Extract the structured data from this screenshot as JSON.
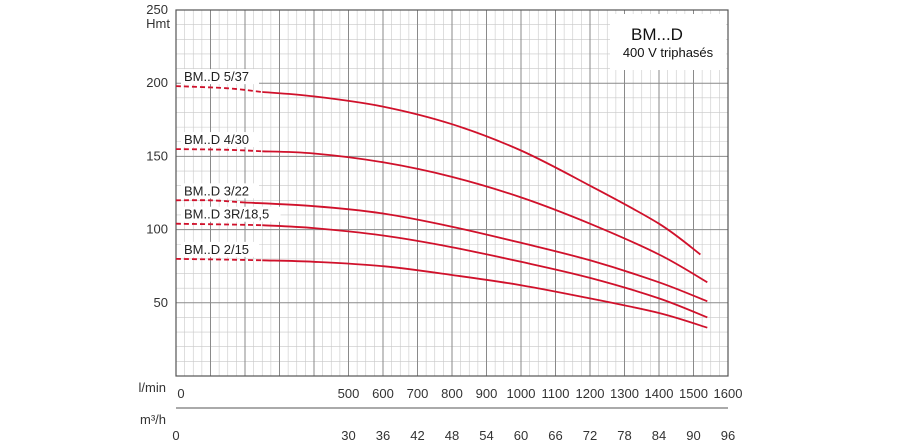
{
  "chart_data": {
    "type": "line",
    "title": "BM...D",
    "subtitle": "400 V triphasés",
    "ylabel": "Hmt",
    "xlabel": "l/min",
    "x2label": "m³/h",
    "ylim": [
      0,
      250
    ],
    "xlim": [
      0,
      1600
    ],
    "y_ticks": [
      "250",
      "200",
      "150",
      "100",
      "50"
    ],
    "y_tick_values": [
      250,
      200,
      150,
      100,
      50
    ],
    "x_ticks": [
      "0",
      "500",
      "600",
      "700",
      "800",
      "900",
      "1000",
      "1100",
      "1200",
      "1300",
      "1400",
      "1500",
      "1600"
    ],
    "x_tick_values": [
      0,
      500,
      600,
      700,
      800,
      900,
      1000,
      1100,
      1200,
      1300,
      1400,
      1500,
      1600
    ],
    "x2_ticks": [
      "0",
      "30",
      "36",
      "42",
      "48",
      "54",
      "60",
      "66",
      "72",
      "78",
      "84",
      "90",
      "96"
    ],
    "x2_tick_values": [
      0,
      500,
      600,
      700,
      800,
      900,
      1000,
      1100,
      1200,
      1300,
      1400,
      1500,
      1600
    ],
    "grid": true,
    "line_color": "#d0112b",
    "series": [
      {
        "name": "BM..D 5/37",
        "dashed": [
          [
            0,
            198
          ],
          [
            150,
            196.5
          ],
          [
            250,
            194
          ]
        ],
        "x": [
          250,
          400,
          600,
          800,
          1000,
          1200,
          1400,
          1520
        ],
        "y": [
          194,
          191,
          184,
          172,
          154,
          130,
          104,
          83
        ]
      },
      {
        "name": "BM..D 4/30",
        "dashed": [
          [
            0,
            155
          ],
          [
            150,
            154.5
          ],
          [
            250,
            153.5
          ]
        ],
        "x": [
          250,
          400,
          600,
          800,
          1000,
          1200,
          1400,
          1540
        ],
        "y": [
          153.5,
          152,
          146,
          136,
          122,
          104,
          83,
          64
        ]
      },
      {
        "name": "BM..D 3/22",
        "dashed": [
          [
            0,
            120
          ],
          [
            100,
            120
          ],
          [
            200,
            118.5
          ]
        ],
        "x": [
          200,
          400,
          600,
          800,
          1000,
          1200,
          1400,
          1540
        ],
        "y": [
          118.5,
          116,
          111,
          102,
          91,
          79,
          64,
          51
        ]
      },
      {
        "name": "BM..D 3R/18,5",
        "dashed": [
          [
            0,
            104
          ],
          [
            150,
            103.5
          ],
          [
            250,
            103
          ]
        ],
        "x": [
          250,
          400,
          600,
          800,
          1000,
          1200,
          1400,
          1540
        ],
        "y": [
          103,
          101,
          96,
          88,
          78,
          67,
          53,
          40
        ]
      },
      {
        "name": "BM..D 2/15",
        "dashed": [
          [
            0,
            80
          ],
          [
            150,
            79.5
          ],
          [
            250,
            79
          ]
        ],
        "x": [
          250,
          400,
          600,
          800,
          1000,
          1200,
          1400,
          1540
        ],
        "y": [
          79,
          78,
          75,
          69,
          62,
          53,
          43,
          33
        ]
      }
    ]
  }
}
